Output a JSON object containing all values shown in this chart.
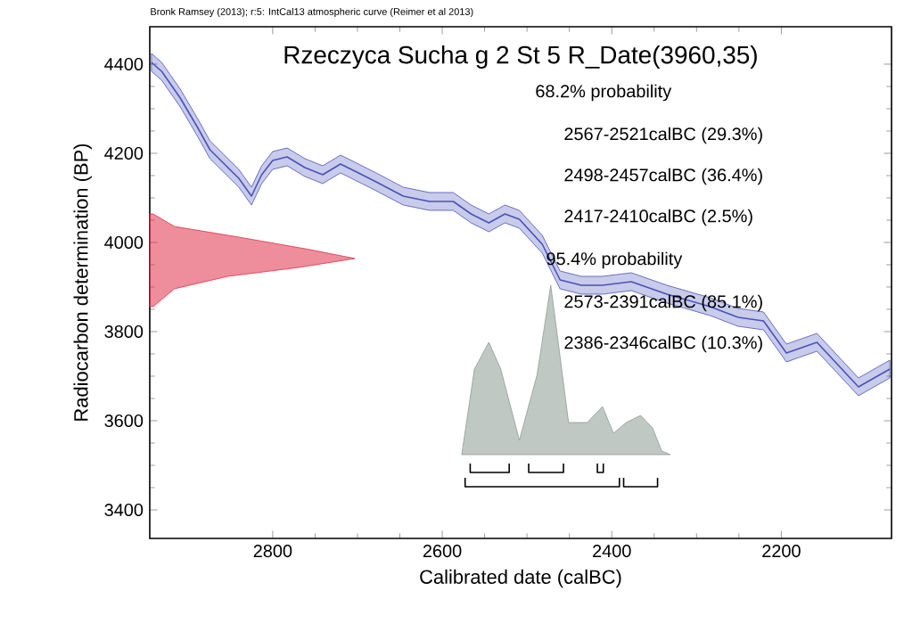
{
  "chart_data": {
    "type": "line",
    "title": "Rzeczyca Sucha g 2 St 5 R_Date(3960,35)",
    "xlabel": "Calibrated date (calBC)",
    "ylabel": "Radiocarbon determination (BP)",
    "annotations": [
      "Bronk Ramsey (2013); r:5: IntCal13 atmospheric curve (Reimer et al 2013)",
      "68.2% probability",
      "2567-2521calBC (29.3%)",
      "2498-2457calBC (36.4%)",
      "2417-2410calBC (2.5%)",
      "95.4% probability",
      "2573-2391calBC (85.1%)",
      "2386-2346calBC (10.3%)"
    ],
    "xlim": [
      2945,
      2070
    ],
    "ylim": [
      3336,
      4484
    ],
    "xticks": [
      2800,
      2600,
      2400,
      2200
    ],
    "yticks": [
      3400,
      3600,
      3800,
      4000,
      4200,
      4400
    ],
    "marker": "none",
    "series": [
      {
        "type": "area",
        "color": "#e0304a",
        "x": [
          2945,
          2941,
          2916,
          2840,
          2756,
          2703,
          2769,
          2853,
          2916,
          2941,
          2945
        ],
        "values": [
          4064,
          4064,
          4036,
          4012,
          3984,
          3964,
          3944,
          3924,
          3896,
          3856,
          3856
        ]
      },
      {
        "type": "area",
        "color": "#8c9a94",
        "x": [
          2577,
          2562,
          2545,
          2531,
          2509,
          2488,
          2472,
          2461,
          2451,
          2429,
          2411,
          2398,
          2383,
          2366,
          2352,
          2341,
          2331
        ],
        "values": [
          3524,
          3716,
          3776,
          3716,
          3556,
          3704,
          3904,
          3744,
          3596,
          3596,
          3632,
          3572,
          3596,
          3612,
          3584,
          3532,
          3524
        ]
      },
      {
        "color": "#4a52b8",
        "x": [
          2943,
          2931,
          2909,
          2888,
          2874,
          2857,
          2840,
          2825,
          2813,
          2800,
          2783,
          2762,
          2741,
          2720,
          2703,
          2678,
          2646,
          2615,
          2587,
          2566,
          2545,
          2526,
          2509,
          2482,
          2461,
          2436,
          2411,
          2377,
          2335,
          2284,
          2251,
          2221,
          2194,
          2158,
          2109,
          2072
        ],
        "values": [
          4404,
          4384,
          4324,
          4256,
          4208,
          4176,
          4144,
          4104,
          4152,
          4184,
          4192,
          4168,
          4152,
          4176,
          4160,
          4136,
          4104,
          4092,
          4092,
          4064,
          4044,
          4064,
          4052,
          3996,
          3916,
          3904,
          3904,
          3912,
          3884,
          3856,
          3832,
          3824,
          3752,
          3776,
          3676,
          3716
        ],
        "lower": [
          4384,
          4364,
          4304,
          4236,
          4188,
          4156,
          4124,
          4084,
          4132,
          4164,
          4172,
          4148,
          4132,
          4156,
          4140,
          4116,
          4084,
          4072,
          4072,
          4044,
          4024,
          4044,
          4032,
          3976,
          3896,
          3884,
          3884,
          3892,
          3864,
          3836,
          3812,
          3804,
          3732,
          3756,
          3656,
          3696
        ],
        "upper": [
          4424,
          4404,
          4344,
          4276,
          4228,
          4196,
          4164,
          4124,
          4172,
          4204,
          4212,
          4188,
          4172,
          4196,
          4180,
          4156,
          4124,
          4112,
          4112,
          4084,
          4064,
          4084,
          4072,
          4016,
          3936,
          3924,
          3924,
          3932,
          3904,
          3876,
          3852,
          3844,
          3772,
          3796,
          3696,
          3736
        ]
      },
      {
        "color": "#000000",
        "x": [
          2567,
          2567,
          2521,
          2521
        ],
        "values": [
          3504,
          3484,
          3484,
          3504
        ]
      },
      {
        "color": "#000000",
        "x": [
          2498,
          2498,
          2457,
          2457
        ],
        "values": [
          3504,
          3484,
          3484,
          3504
        ]
      },
      {
        "color": "#000000",
        "x": [
          2417,
          2417,
          2410,
          2410
        ],
        "values": [
          3504,
          3484,
          3484,
          3504
        ]
      },
      {
        "color": "#000000",
        "x": [
          2573,
          2573,
          2391,
          2391
        ],
        "values": [
          3472,
          3452,
          3452,
          3472
        ]
      },
      {
        "color": "#000000",
        "x": [
          2386,
          2386,
          2346,
          2346
        ],
        "values": [
          3472,
          3452,
          3452,
          3472
        ]
      }
    ]
  }
}
